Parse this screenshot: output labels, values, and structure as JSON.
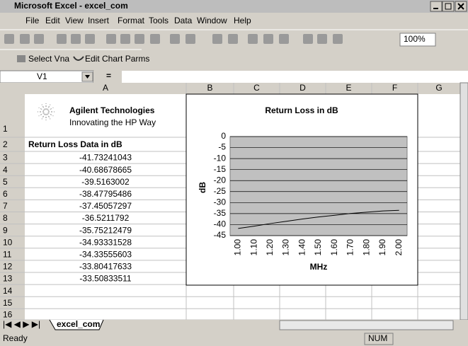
{
  "window": {
    "title": "Microsoft Excel - excel_com"
  },
  "menu": [
    "File",
    "Edit",
    "View",
    "Insert",
    "Format",
    "Tools",
    "Data",
    "Window",
    "Help"
  ],
  "toolbar": {
    "zoom": "100%",
    "buttons": [
      "Select Vna",
      "Edit Chart Parms"
    ]
  },
  "formula_bar": {
    "name_box": "V1",
    "equals": "="
  },
  "sheet": {
    "columns": [
      "A",
      "B",
      "C",
      "D",
      "E",
      "F",
      "G"
    ],
    "rows": [
      1,
      2,
      3,
      4,
      5,
      6,
      7,
      8,
      9,
      10,
      11,
      12,
      13,
      14,
      15,
      16
    ],
    "logo": {
      "name": "Agilent Technologies",
      "tagline": "Innovating the HP Way"
    },
    "header": "Return Loss Data in dB",
    "tab": "excel_com"
  },
  "status": {
    "ready": "Ready",
    "num": "NUM"
  },
  "chart_data": {
    "type": "line",
    "title": "Return Loss in dB",
    "xlabel": "MHz",
    "ylabel": "dB",
    "categories": [
      "1.00",
      "1.10",
      "1.20",
      "1.30",
      "1.40",
      "1.50",
      "1.60",
      "1.70",
      "1.80",
      "1.90",
      "2.00"
    ],
    "series": [
      {
        "name": "Return Loss",
        "color": "#000000",
        "values": [
          -41.73241043,
          -40.68678665,
          -39.5163002,
          -38.47795486,
          -37.45057297,
          -36.5211792,
          -35.75212479,
          -34.93331528,
          -34.33555603,
          -33.80417633,
          -33.50833511
        ]
      }
    ],
    "ylim": [
      -45,
      0
    ],
    "yticks": [
      0,
      -5,
      -10,
      -15,
      -20,
      -25,
      -30,
      -35,
      -40,
      -45
    ],
    "grid": true
  }
}
